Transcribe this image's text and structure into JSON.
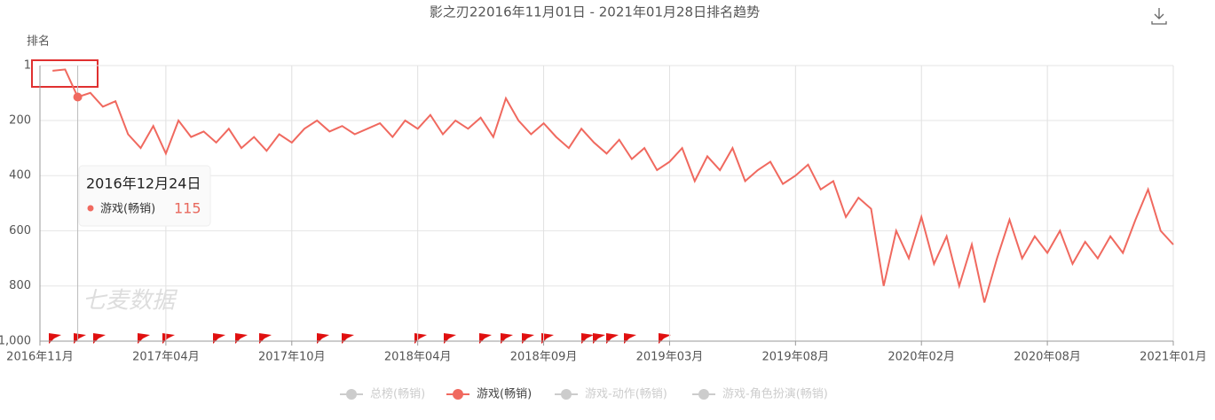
{
  "chart_data": {
    "type": "line",
    "title": "影之刃22016年11月01日 - 2021年01月28日排名趋势",
    "y_label": "排名",
    "watermark": "七麦数据",
    "categories": [
      "2016年11月",
      null,
      null,
      null,
      null,
      null,
      null,
      null,
      null,
      null,
      "2017年04月",
      null,
      null,
      null,
      null,
      null,
      null,
      null,
      null,
      null,
      "2017年10月",
      null,
      null,
      null,
      null,
      null,
      null,
      null,
      null,
      null,
      "2018年04月",
      null,
      null,
      null,
      null,
      null,
      null,
      null,
      null,
      null,
      "2018年09月",
      null,
      null,
      null,
      null,
      null,
      null,
      null,
      null,
      null,
      "2019年03月",
      null,
      null,
      null,
      null,
      null,
      null,
      null,
      null,
      null,
      "2019年08月",
      null,
      null,
      null,
      null,
      null,
      null,
      null,
      null,
      null,
      "2020年02月",
      null,
      null,
      null,
      null,
      null,
      null,
      null,
      null,
      null,
      "2020年08月",
      null,
      null,
      null,
      null,
      null,
      null,
      null,
      null,
      null,
      "2021年01月"
    ],
    "series": [
      {
        "name": "游戏(畅销)",
        "color": "#f0695f",
        "values": [
          null,
          20,
          15,
          115,
          100,
          150,
          130,
          250,
          300,
          220,
          320,
          200,
          260,
          240,
          280,
          230,
          300,
          260,
          310,
          250,
          280,
          230,
          200,
          240,
          220,
          250,
          230,
          210,
          260,
          200,
          230,
          180,
          250,
          200,
          230,
          190,
          260,
          120,
          200,
          250,
          210,
          260,
          300,
          230,
          280,
          320,
          270,
          340,
          300,
          380,
          350,
          300,
          420,
          330,
          380,
          300,
          420,
          380,
          350,
          430,
          400,
          360,
          450,
          420,
          550,
          480,
          520,
          800,
          600,
          700,
          550,
          720,
          620,
          800,
          650,
          860,
          700,
          560,
          700,
          620,
          680,
          600,
          720,
          640,
          700,
          620,
          680,
          560,
          450,
          600,
          650
        ]
      }
    ],
    "legend_items": [
      {
        "name": "总榜(畅销)",
        "active": false
      },
      {
        "name": "游戏(畅销)",
        "active": true
      },
      {
        "name": "游戏-动作(畅销)",
        "active": false
      },
      {
        "name": "游戏-角色扮演(畅销)",
        "active": false
      }
    ],
    "ylim": [
      1,
      1000
    ],
    "inverted": true,
    "yticks": [
      1,
      200,
      400,
      600,
      800,
      {
        "value": 1000,
        "label": "1,000"
      }
    ],
    "grid": true,
    "tooltip": {
      "date": "2016年12月24日",
      "series": "游戏(畅销)",
      "value": 115,
      "index": 3
    }
  }
}
